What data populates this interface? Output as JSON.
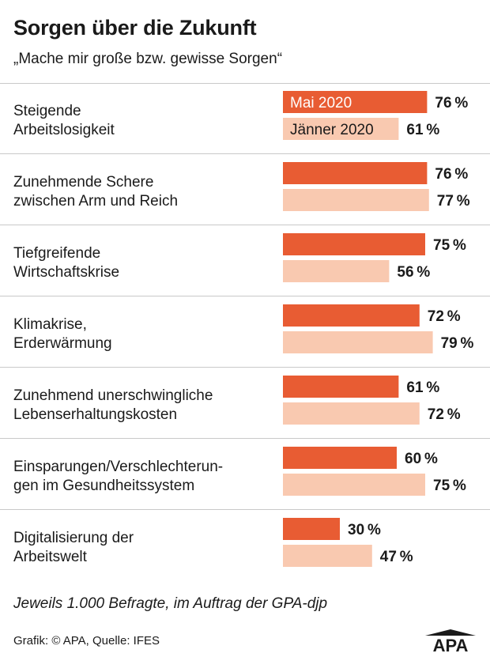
{
  "header": {
    "title": "Sorgen über die Zukunft",
    "subtitle": "„Mache mir große bzw. gewisse Sorgen“"
  },
  "footer": {
    "note": "Jeweils 1.000 Befragte, im Auftrag der GPA-djp",
    "source": "Grafik: © APA, Quelle: IFES",
    "logo_text": "APA"
  },
  "colors": {
    "mai": "#e85c33",
    "jaenner": "#f9c9b0",
    "rule": "#c9c9c9",
    "text": "#1a1a1a"
  },
  "chart_data": {
    "type": "bar",
    "orientation": "horizontal",
    "value_suffix": "%",
    "xlim": [
      0,
      100
    ],
    "grid": false,
    "categories": [
      [
        "Steigende",
        "Arbeitslosigkeit"
      ],
      [
        "Zunehmende Schere",
        "zwischen Arm und Reich"
      ],
      [
        "Tiefgreifende",
        "Wirtschaftskrise"
      ],
      [
        "Klimakrise,",
        "Erderwärmung"
      ],
      [
        "Zunehmend unerschwingliche",
        "Lebenserhaltungskosten"
      ],
      [
        "Einsparungen/Verschlechterun-",
        "gen im Gesundheitssystem"
      ],
      [
        "Digitalisierung der",
        "Arbeitswelt"
      ]
    ],
    "series": [
      {
        "name": "Mai 2020",
        "values": [
          76,
          76,
          75,
          72,
          61,
          60,
          30
        ]
      },
      {
        "name": "Jänner 2020",
        "values": [
          61,
          77,
          56,
          79,
          72,
          75,
          47
        ]
      }
    ]
  }
}
